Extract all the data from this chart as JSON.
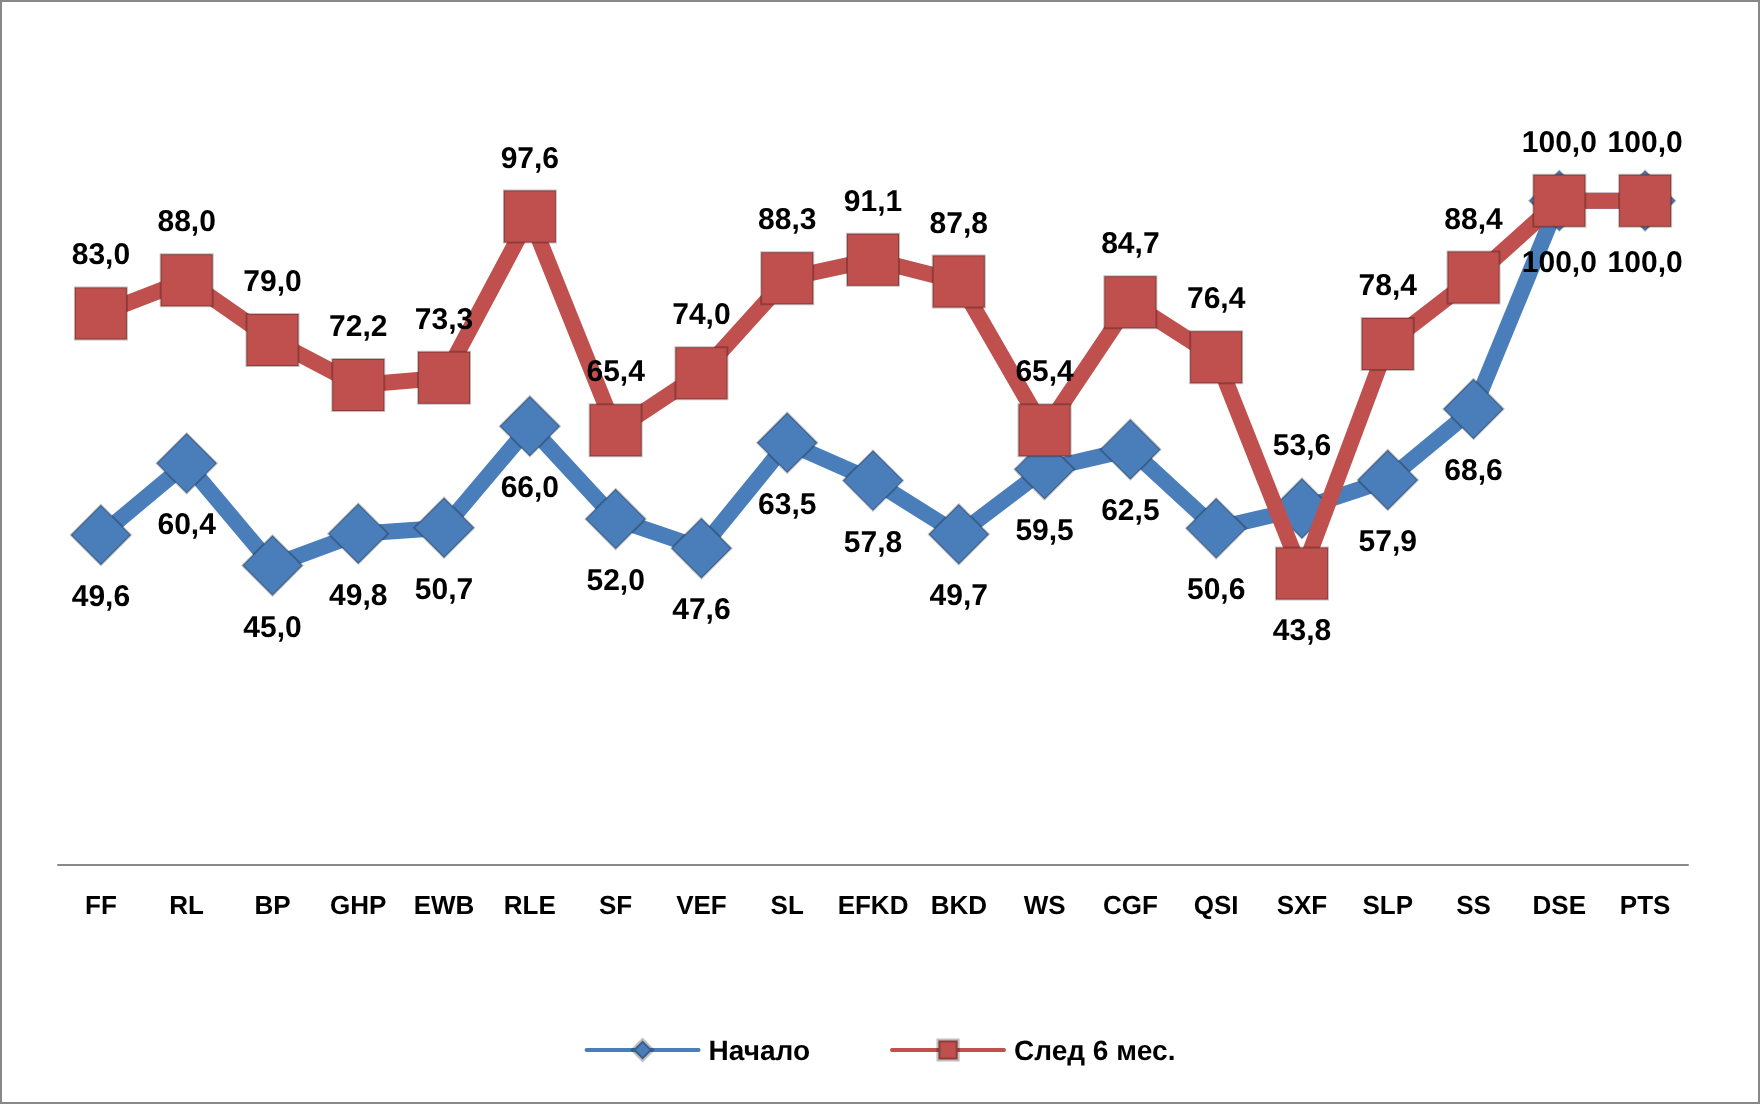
{
  "chart_data": {
    "type": "line",
    "categories": [
      "FF",
      "RL",
      "BP",
      "GHP",
      "EWB",
      "RLE",
      "SF",
      "VEF",
      "SL",
      "EFKD",
      "BKD",
      "WS",
      "CGF",
      "QSI",
      "SXF",
      "SLP",
      "SS",
      "DSE",
      "PTS"
    ],
    "series": [
      {
        "name": "Начало",
        "color": "#4a7ebb",
        "marker": "diamond",
        "values": [
          49.6,
          60.4,
          45.0,
          49.8,
          50.7,
          66.0,
          52.0,
          47.6,
          63.5,
          57.8,
          49.7,
          59.5,
          62.5,
          50.6,
          53.6,
          57.9,
          68.6,
          100.0,
          100.0
        ],
        "value_labels": [
          "49,6",
          "60,4",
          "45,0",
          "49,8",
          "50,7",
          "66,0",
          "52,0",
          "47,6",
          "63,5",
          "57,8",
          "49,7",
          "59,5",
          "62,5",
          "50,6",
          "53,6",
          "57,9",
          "68,6",
          "100,0",
          "100,0"
        ]
      },
      {
        "name": "След 6 мес.",
        "color": "#c0504d",
        "marker": "square",
        "values": [
          83.0,
          88.0,
          79.0,
          72.2,
          73.3,
          97.6,
          65.4,
          74.0,
          88.3,
          91.1,
          87.8,
          65.4,
          84.7,
          76.4,
          43.8,
          78.4,
          88.4,
          100.0,
          100.0
        ],
        "value_labels": [
          "83,0",
          "88,0",
          "79,0",
          "72,2",
          "73,3",
          "97,6",
          "65,4",
          "74,0",
          "88,3",
          "91,1",
          "87,8",
          "65,4",
          "84,7",
          "76,4",
          "43,8",
          "78,4",
          "88,4",
          "100,0",
          "100,0"
        ]
      }
    ],
    "legend": "bottom"
  }
}
